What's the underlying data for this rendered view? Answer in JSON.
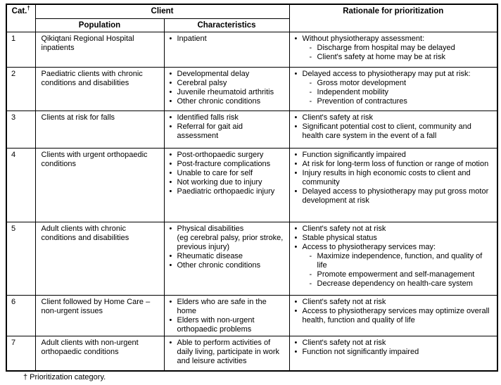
{
  "header": {
    "cat": "Cat.",
    "cat_sup": "†",
    "client": "Client",
    "population": "Population",
    "characteristics": "Characteristics",
    "rationale": "Rationale for prioritization"
  },
  "footnote": "† Prioritization category.",
  "rows": [
    {
      "cat": "1",
      "population": "Qikiqtani Regional Hospital inpatients",
      "characteristics": [
        {
          "text": "Inpatient"
        }
      ],
      "rationale": [
        {
          "text": "Without physiotherapy assessment:",
          "sub": [
            "Discharge from hospital may be delayed",
            "Client's safety at home may be at risk"
          ]
        }
      ]
    },
    {
      "cat": "2",
      "population": "Paediatric clients with chronic conditions and disabilities",
      "characteristics": [
        {
          "text": "Developmental delay"
        },
        {
          "text": "Cerebral palsy"
        },
        {
          "text": "Juvenile rheumatoid arthritis"
        },
        {
          "text": "Other chronic conditions"
        }
      ],
      "rationale": [
        {
          "text": "Delayed access to physiotherapy may put at risk:",
          "sub": [
            "Gross motor development",
            "Independent mobility",
            "Prevention of contractures"
          ]
        }
      ]
    },
    {
      "cat": "3",
      "population": "Clients at risk for falls",
      "characteristics": [
        {
          "text": "Identified falls risk"
        },
        {
          "text": "Referral for gait aid assessment"
        }
      ],
      "rationale": [
        {
          "text": "Client's safety at risk"
        },
        {
          "text": "Significant potential cost to client, community and health care system in the event of a fall"
        }
      ]
    },
    {
      "cat": "4",
      "population": "Clients with urgent orthopaedic conditions",
      "characteristics": [
        {
          "text": "Post-orthopaedic surgery"
        },
        {
          "text": "Post-fracture complications"
        },
        {
          "text": "Unable to care for self"
        },
        {
          "text": "Not working due to injury"
        },
        {
          "text": "Paediatric orthopaedic injury"
        }
      ],
      "rationale": [
        {
          "text": "Function significantly impaired"
        },
        {
          "text": "At risk for long-term loss of function or range of motion"
        },
        {
          "text": "Injury results in high economic costs to client and community"
        },
        {
          "text": "Delayed access to physiotherapy may put gross motor development at risk"
        }
      ]
    },
    {
      "cat": "5",
      "population": "Adult clients with chronic conditions and disabilities",
      "characteristics": [
        {
          "text": "Physical disabilities\n(eg cerebral palsy, prior stroke, previous injury)"
        },
        {
          "text": "Rheumatic disease"
        },
        {
          "text": "Other chronic conditions"
        }
      ],
      "rationale": [
        {
          "text": "Client's safety not at risk"
        },
        {
          "text": "Stable physical status"
        },
        {
          "text": "Access to physiotherapy services may:",
          "sub": [
            "Maximize independence, function, and quality of life",
            "Promote empowerment and self-management",
            "Decrease dependency on health-care system"
          ]
        }
      ]
    },
    {
      "cat": "6",
      "population": "Client followed by Home Care – non-urgent issues",
      "characteristics": [
        {
          "text": "Elders who are safe in the home"
        },
        {
          "text": "Elders with non-urgent orthopaedic problems"
        }
      ],
      "rationale": [
        {
          "text": "Client's safety not at risk"
        },
        {
          "text": "Access to physiotherapy services may optimize overall health, function and quality of life"
        }
      ]
    },
    {
      "cat": "7",
      "population": "Adult clients with non-urgent orthopaedic conditions",
      "characteristics": [
        {
          "text": "Able to perform activities of daily living, participate in work and leisure activities"
        }
      ],
      "rationale": [
        {
          "text": "Client's safety not at risk"
        },
        {
          "text": "Function not significantly impaired"
        }
      ]
    }
  ]
}
